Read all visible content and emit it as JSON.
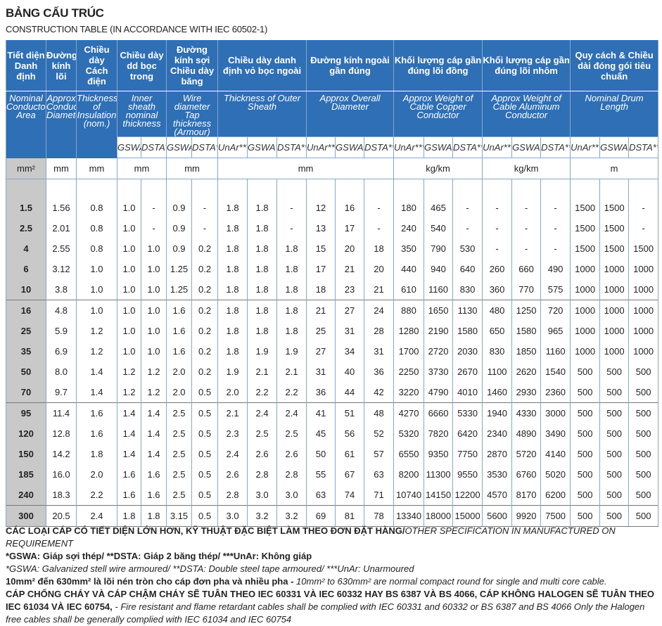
{
  "title": "BẢNG CẤU TRÚC",
  "subtitle": "CONSTRUCTION TABLE (IN ACCORDANCE WITH IEC 60502-1)",
  "table": {
    "headers": [
      {
        "vi": "Tiết diện Danh định",
        "en": "Nominal Conductor Area"
      },
      {
        "vi": "Đường kính lõi",
        "en": "Approx Conductor Diameter"
      },
      {
        "vi": "Chiều dày Cách điện",
        "en": "Thickness of Insulation (nom.)"
      },
      {
        "vi": "Chiều dày dd bọc trong",
        "en": "Inner sheath nominal thickness",
        "sub": [
          "GSWA*",
          "DSTA**"
        ]
      },
      {
        "vi": "Đường kính sợi Chiều dày băng",
        "en": "Wire diameter Tap thickness (Armour)",
        "sub": [
          "GSWA*",
          "DSTA**"
        ]
      },
      {
        "vi": "Chiều dày danh định vỏ bọc ngoài",
        "en": "Thickness of Outer Sheath",
        "sub": [
          "UnAr***",
          "GSWA*",
          "DSTA**"
        ]
      },
      {
        "vi": "Đường kính ngoài gần đúng",
        "en": "Approx Overall Diameter",
        "sub": [
          "UnAr***",
          "GSWA*",
          "DSTA**"
        ]
      },
      {
        "vi": "Khối lượng cáp gần đúng lõi đồng",
        "en": "Approx Weight of Cable Copper Conductor",
        "sub": [
          "UnAr***",
          "GSWA*",
          "DSTA**"
        ]
      },
      {
        "vi": "Khối lượng cáp gần đúng lõi nhôm",
        "en": "Approx Weight of Cable Aluminum Conductor",
        "sub": [
          "UnAr***",
          "GSWA*",
          "DSTA**"
        ]
      },
      {
        "vi": "Quy cách & Chiều dài đóng gói tiêu chuẩn",
        "en": "Nominal Drum Length",
        "sub": [
          "UnAr***",
          "GSWA*",
          "DSTA**"
        ]
      }
    ],
    "units": [
      "mm²",
      "mm",
      "mm",
      "mm",
      "mm",
      "mm",
      "kg/km",
      "kg/km",
      "m"
    ],
    "groups": [
      [
        [
          "1.5",
          "1.56",
          "0.8",
          "1.0",
          "-",
          "0.9",
          "-",
          "1.8",
          "1.8",
          "-",
          "12",
          "16",
          "-",
          "180",
          "465",
          "-",
          "-",
          "-",
          "-",
          "1500",
          "1500",
          "-"
        ],
        [
          "2.5",
          "2.01",
          "0.8",
          "1.0",
          "-",
          "0.9",
          "-",
          "1.8",
          "1.8",
          "-",
          "13",
          "17",
          "-",
          "240",
          "540",
          "-",
          "-",
          "-",
          "-",
          "1500",
          "1500",
          "-"
        ],
        [
          "4",
          "2.55",
          "0.8",
          "1.0",
          "1.0",
          "0.9",
          "0.2",
          "1.8",
          "1.8",
          "1.8",
          "15",
          "20",
          "18",
          "350",
          "790",
          "530",
          "-",
          "-",
          "-",
          "1500",
          "1500",
          "1500"
        ],
        [
          "6",
          "3.12",
          "1.0",
          "1.0",
          "1.0",
          "1.25",
          "0.2",
          "1.8",
          "1.8",
          "1.8",
          "17",
          "21",
          "20",
          "440",
          "940",
          "640",
          "260",
          "660",
          "490",
          "1000",
          "1000",
          "1000"
        ],
        [
          "10",
          "3.8",
          "1.0",
          "1.0",
          "1.0",
          "1.25",
          "0.2",
          "1.8",
          "1.8",
          "1.8",
          "18",
          "23",
          "21",
          "610",
          "1160",
          "830",
          "360",
          "770",
          "575",
          "1000",
          "1000",
          "1000"
        ]
      ],
      [
        [
          "16",
          "4.8",
          "1.0",
          "1.0",
          "1.0",
          "1.6",
          "0.2",
          "1.8",
          "1.8",
          "1.8",
          "21",
          "27",
          "24",
          "880",
          "1650",
          "1130",
          "480",
          "1250",
          "720",
          "1000",
          "1000",
          "1000"
        ],
        [
          "25",
          "5.9",
          "1.2",
          "1.0",
          "1.0",
          "1.6",
          "0.2",
          "1.8",
          "1.8",
          "1.8",
          "25",
          "31",
          "28",
          "1280",
          "2190",
          "1580",
          "650",
          "1580",
          "965",
          "1000",
          "1000",
          "1000"
        ],
        [
          "35",
          "6.9",
          "1.2",
          "1.0",
          "1.0",
          "1.6",
          "0.2",
          "1.8",
          "1.9",
          "1.9",
          "27",
          "34",
          "31",
          "1700",
          "2720",
          "2030",
          "830",
          "1850",
          "1160",
          "1000",
          "1000",
          "1000"
        ],
        [
          "50",
          "8.0",
          "1.4",
          "1.2",
          "1.2",
          "2.0",
          "0.2",
          "1.9",
          "2.1",
          "2.1",
          "31",
          "40",
          "36",
          "2250",
          "3730",
          "2670",
          "1100",
          "2620",
          "1540",
          "500",
          "500",
          "500"
        ],
        [
          "70",
          "9.7",
          "1.4",
          "1.2",
          "1.2",
          "2.0",
          "0.5",
          "2.0",
          "2.2",
          "2.2",
          "36",
          "44",
          "42",
          "3220",
          "4790",
          "4010",
          "1460",
          "2930",
          "2360",
          "500",
          "500",
          "500"
        ]
      ],
      [
        [
          "95",
          "11.4",
          "1.6",
          "1.4",
          "1.4",
          "2.5",
          "0.5",
          "2.1",
          "2.4",
          "2.4",
          "41",
          "51",
          "48",
          "4270",
          "6660",
          "5330",
          "1940",
          "4330",
          "3000",
          "500",
          "500",
          "500"
        ],
        [
          "120",
          "12.8",
          "1.6",
          "1.4",
          "1.4",
          "2.5",
          "0.5",
          "2.3",
          "2.5",
          "2.5",
          "45",
          "56",
          "52",
          "5320",
          "7820",
          "6420",
          "2340",
          "4890",
          "3490",
          "500",
          "500",
          "500"
        ],
        [
          "150",
          "14.2",
          "1.8",
          "1.4",
          "1.4",
          "2.5",
          "0.5",
          "2.4",
          "2.6",
          "2.6",
          "50",
          "61",
          "57",
          "6550",
          "9350",
          "7750",
          "2870",
          "5720",
          "4140",
          "500",
          "500",
          "500"
        ],
        [
          "185",
          "16.0",
          "2.0",
          "1.6",
          "1.6",
          "2.5",
          "0.5",
          "2.6",
          "2.8",
          "2.8",
          "55",
          "67",
          "63",
          "8200",
          "11300",
          "9550",
          "3530",
          "6760",
          "5020",
          "500",
          "500",
          "500"
        ],
        [
          "240",
          "18.3",
          "2.2",
          "1.6",
          "1.6",
          "2.5",
          "0.5",
          "2.8",
          "3.0",
          "3.0",
          "63",
          "74",
          "71",
          "10740",
          "14150",
          "12200",
          "4570",
          "8170",
          "6200",
          "500",
          "500",
          "500"
        ]
      ],
      [
        [
          "300",
          "20.5",
          "2.4",
          "1.8",
          "1.8",
          "3.15",
          "0.5",
          "3.0",
          "3.2",
          "3.2",
          "69",
          "81",
          "78",
          "13340",
          "18000",
          "15000",
          "5600",
          "9920",
          "7500",
          "500",
          "500",
          "500"
        ]
      ]
    ]
  },
  "notes": [
    {
      "bold": "CÁC LOẠI CÁP CÓ TIẾT DIỆN LỚN HƠN, KỸ THUẬT ĐẶC BIỆT LÀM THEO ĐƠN ĐẶT HÀNG/",
      "italic": "OTHER SPECIFICATION IN MANUFACTURED ON REQUIREMENT"
    },
    {
      "bold": "*GSWA: Giáp sợi thép/ **DSTA: Giáp 2 băng thép/ ***UnAr: Không giáp"
    },
    {
      "italic": "*GSWA: Galvanized stell wire armoured/ **DSTA: Double steel tape armoured/ ***UnAr: Unarmoured"
    },
    {
      "bold": "10mm² đến 630mm² là lõi nén tròn cho cáp đơn pha và nhiều pha - ",
      "italic": "10mm² to 630mm² are normal compact round for single and multi core cable."
    },
    {
      "bold": "CÁP CHỐNG CHÁY VÀ CÁP CHẬM CHÁY SẼ TUÂN THEO IEC 60331 VÀ IEC 60332 HAY BS 6387 VÀ BS 4066, CÁP KHÔNG HALOGEN SẼ TUÂN THEO IEC 61034 VÀ IEC 60754,",
      "italic": " - Fire resistant and flame retardant cables shall be complied with IEC 60331 and 60332 or BS 6387 and BS 4066 Only the Halogen free cables shall be generally complied with IEC 61034 and IEC 60754"
    }
  ]
}
